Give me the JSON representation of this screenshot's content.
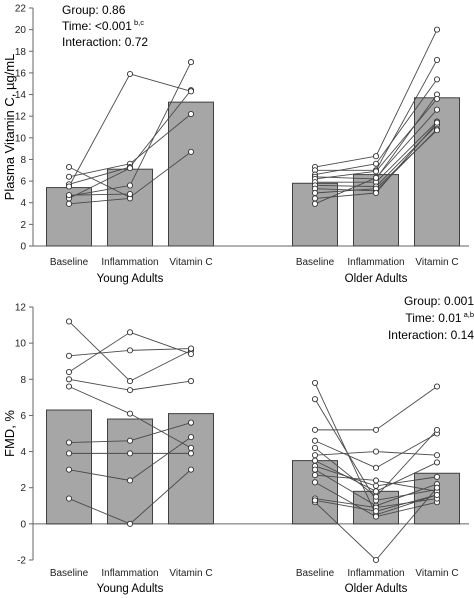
{
  "chart_data": [
    {
      "type": "bar",
      "ylabel": "Plasma Vitamin C, µg/mL",
      "ylim": [
        0,
        22
      ],
      "yticks": [
        0,
        2,
        4,
        6,
        8,
        10,
        12,
        14,
        16,
        18,
        20,
        22
      ],
      "stats": [
        {
          "text": "Group: 0.86",
          "sup": ""
        },
        {
          "text": "Time: <0.001",
          "sup": "b,c"
        },
        {
          "text": "Interaction: 0.72",
          "sup": ""
        }
      ],
      "groups": [
        {
          "name": "Young Adults",
          "categories": [
            "Baseline",
            "Inflammation",
            "Vitamin C"
          ],
          "bar_values": [
            5.4,
            7.1,
            13.3
          ],
          "subjects": [
            [
              7.3,
              4.5,
              8.7
            ],
            [
              6.4,
              7.6,
              12.2
            ],
            [
              5.7,
              7.3,
              14.4
            ],
            [
              5.5,
              15.9,
              14.3
            ],
            [
              4.6,
              5.6,
              17.0
            ],
            [
              4.4,
              7.2,
              null
            ],
            [
              3.9,
              4.4,
              null
            ],
            [
              4.7,
              4.8,
              null
            ]
          ]
        },
        {
          "name": "Older Adults",
          "categories": [
            "Baseline",
            "Inflammation",
            "Vitamin C"
          ],
          "bar_values": [
            5.8,
            6.6,
            13.7
          ],
          "subjects": [
            [
              7.3,
              8.3,
              20.0
            ],
            [
              7.0,
              7.0,
              17.2
            ],
            [
              6.6,
              7.6,
              15.4
            ],
            [
              6.4,
              6.2,
              14.0
            ],
            [
              6.2,
              6.9,
              13.6
            ],
            [
              5.9,
              5.9,
              11.5
            ],
            [
              5.6,
              5.5,
              11.2
            ],
            [
              5.3,
              5.1,
              10.8
            ],
            [
              4.9,
              5.3,
              10.7
            ],
            [
              4.4,
              4.9,
              11.4
            ],
            [
              3.9,
              6.3,
              12.6
            ]
          ]
        }
      ]
    },
    {
      "type": "bar",
      "ylabel": "FMD, %",
      "ylim": [
        -2,
        12
      ],
      "yticks": [
        -2,
        0,
        2,
        4,
        6,
        8,
        10,
        12
      ],
      "stats": [
        {
          "text": "Group: 0.001",
          "sup": ""
        },
        {
          "text": "Time: 0.01",
          "sup": "a,b"
        },
        {
          "text": "Interaction: 0.14",
          "sup": ""
        }
      ],
      "groups": [
        {
          "name": "Young Adults",
          "categories": [
            "Baseline",
            "Inflammation",
            "Vitamin C"
          ],
          "bar_values": [
            6.3,
            5.8,
            6.1
          ],
          "subjects": [
            [
              11.2,
              7.9,
              9.6
            ],
            [
              9.3,
              9.6,
              9.7
            ],
            [
              8.4,
              10.6,
              9.4
            ],
            [
              8.0,
              7.4,
              7.9
            ],
            [
              7.6,
              6.1,
              4.2
            ],
            [
              4.5,
              4.6,
              5.6
            ],
            [
              3.9,
              3.9,
              3.9
            ],
            [
              3.0,
              2.4,
              4.8
            ],
            [
              1.4,
              0.0,
              3.0
            ]
          ]
        },
        {
          "name": "Older Adults",
          "categories": [
            "Baseline",
            "Inflammation",
            "Vitamin C"
          ],
          "bar_values": [
            3.5,
            1.8,
            2.8
          ],
          "subjects": [
            [
              7.8,
              0.5,
              1.6
            ],
            [
              6.9,
              1.3,
              1.9
            ],
            [
              5.2,
              5.2,
              7.6
            ],
            [
              4.6,
              3.1,
              5.0
            ],
            [
              4.2,
              1.5,
              5.2
            ],
            [
              3.8,
              4.0,
              3.8
            ],
            [
              3.5,
              1.8,
              3.4
            ],
            [
              3.2,
              2.1,
              2.6
            ],
            [
              3.0,
              1.0,
              2.2
            ],
            [
              2.7,
              2.4,
              1.8
            ],
            [
              2.3,
              0.4,
              1.2
            ],
            [
              1.4,
              0.9,
              1.4
            ],
            [
              1.2,
              -2.0,
              2.0
            ],
            [
              1.3,
              0.7,
              1.6
            ]
          ]
        }
      ]
    }
  ]
}
